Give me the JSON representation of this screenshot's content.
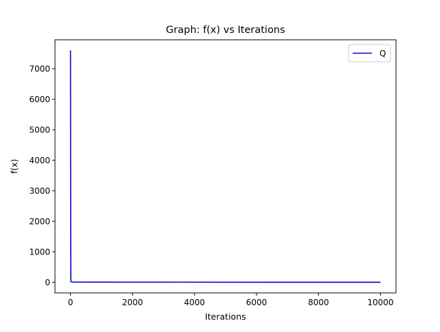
{
  "chart_data": {
    "type": "line",
    "title": "Graph: f(x) vs Iterations",
    "xlabel": "Iterations",
    "ylabel": "f(x)",
    "xlim": [
      -500,
      10500
    ],
    "ylim": [
      -350,
      7950
    ],
    "xticks": [
      0,
      2000,
      4000,
      6000,
      8000,
      10000
    ],
    "yticks": [
      0,
      1000,
      2000,
      3000,
      4000,
      5000,
      6000,
      7000
    ],
    "grid": false,
    "legend_position": "top-right",
    "series": [
      {
        "name": "Q",
        "color": "#0000cc",
        "x": [
          0,
          5,
          10,
          20,
          50,
          100,
          500,
          1000,
          10000
        ],
        "y": [
          7600,
          3000,
          60,
          15,
          8,
          5,
          3,
          2,
          0
        ]
      }
    ]
  }
}
